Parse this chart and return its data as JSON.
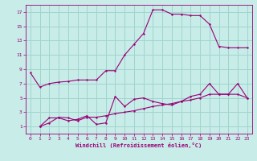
{
  "xlabel": "Windchill (Refroidissement éolien,°C)",
  "background_color": "#c8ece8",
  "grid_color": "#a0d4ce",
  "line_color": "#990077",
  "xlim": [
    -0.5,
    23.5
  ],
  "ylim": [
    0,
    18
  ],
  "xticks": [
    0,
    1,
    2,
    3,
    4,
    5,
    6,
    7,
    8,
    9,
    10,
    11,
    12,
    13,
    14,
    15,
    16,
    17,
    18,
    19,
    20,
    21,
    22,
    23
  ],
  "yticks": [
    1,
    3,
    5,
    7,
    9,
    11,
    13,
    15,
    17
  ],
  "line1_x": [
    0,
    1,
    2,
    3,
    4,
    5,
    6,
    7,
    8,
    9,
    10,
    11,
    12,
    13,
    14,
    15,
    16,
    17,
    18,
    19,
    20,
    21,
    22,
    23
  ],
  "line1_y": [
    8.5,
    6.5,
    7.0,
    7.2,
    7.3,
    7.5,
    7.5,
    7.5,
    8.8,
    8.8,
    11.0,
    12.5,
    14.0,
    17.3,
    17.3,
    16.7,
    16.7,
    16.5,
    16.5,
    15.3,
    12.2,
    12.0,
    12.0,
    12.0
  ],
  "line2_x": [
    1,
    2,
    3,
    4,
    5,
    6,
    7,
    8,
    9,
    10,
    11,
    12,
    13,
    14,
    15,
    16,
    17,
    18,
    19,
    20,
    21,
    22,
    23
  ],
  "line2_y": [
    1.0,
    2.2,
    2.2,
    1.8,
    2.0,
    2.5,
    1.3,
    1.5,
    5.2,
    3.8,
    4.8,
    5.0,
    4.5,
    4.2,
    4.0,
    4.5,
    5.2,
    5.5,
    7.0,
    5.5,
    5.5,
    7.0,
    5.0
  ],
  "line3_x": [
    1,
    2,
    3,
    4,
    5,
    6,
    7,
    8,
    9,
    10,
    11,
    12,
    13,
    14,
    15,
    16,
    17,
    18,
    19,
    20,
    21,
    22,
    23
  ],
  "line3_y": [
    1.0,
    1.5,
    2.3,
    2.2,
    1.8,
    2.3,
    2.3,
    2.5,
    2.8,
    3.0,
    3.2,
    3.5,
    3.8,
    4.0,
    4.2,
    4.5,
    4.7,
    5.0,
    5.5,
    5.5,
    5.5,
    5.5,
    5.0
  ]
}
